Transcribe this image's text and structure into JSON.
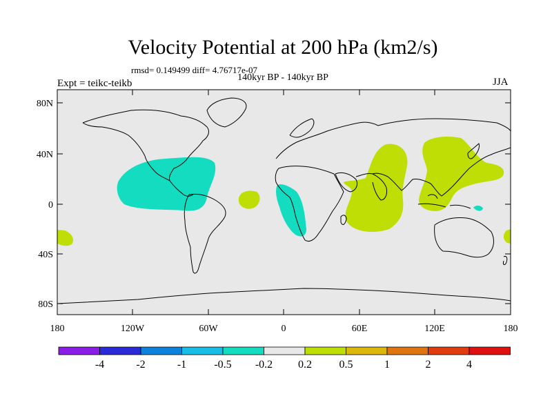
{
  "title": "Velocity Potential at 200 hPa (km2/s)",
  "stats": "rmsd= 0.149499 diff= 4.76717e-07",
  "period": "140kyr BP - 140kyr BP",
  "experiment": "Expt = teikc-teikb",
  "season": "JJA",
  "lat_ticks": [
    "80N",
    "40N",
    "0",
    "40S",
    "80S"
  ],
  "lon_ticks": [
    "180",
    "120W",
    "60W",
    "0",
    "60E",
    "120E",
    "180"
  ],
  "colorbar": {
    "colors": [
      "#8a1ee6",
      "#2a2ad8",
      "#0b82dc",
      "#18bee6",
      "#14dcc0",
      "#e8e8e8",
      "#bede06",
      "#dcb80a",
      "#e07410",
      "#e03c10",
      "#e01010"
    ],
    "labels": [
      "-4",
      "-2",
      "-1",
      "-0.5",
      "-0.2",
      "0.2",
      "0.5",
      "1",
      "2",
      "4"
    ]
  },
  "colors": {
    "ocean": "#e8e8e8",
    "negative_fill": "#14dcc0",
    "positive_fill": "#bede06"
  }
}
